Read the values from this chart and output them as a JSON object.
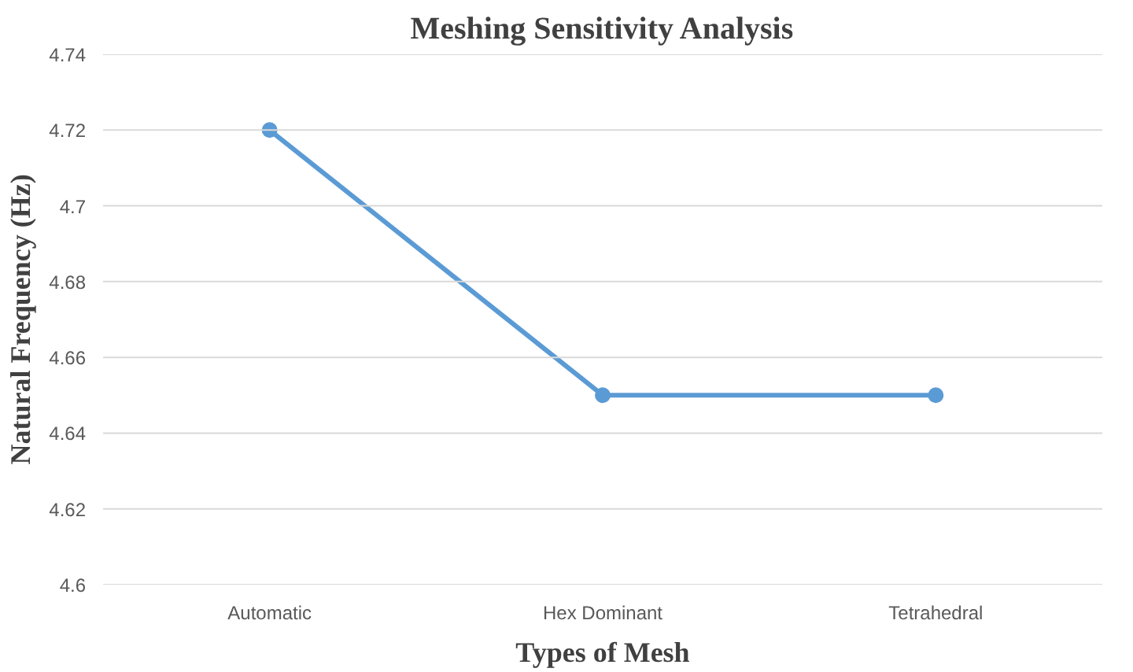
{
  "chart_data": {
    "type": "line",
    "title": "Meshing Sensitivity Analysis",
    "xlabel": "Types of Mesh",
    "ylabel": "Natural Frequency (Hz)",
    "categories": [
      "Automatic",
      "Hex Dominant",
      "Tetrahedral"
    ],
    "series": [
      {
        "color": "#5b9bd5",
        "values": [
          4.72,
          4.65,
          4.65
        ]
      }
    ],
    "ylim": [
      4.6,
      4.74
    ],
    "yticks": [
      4.6,
      4.62,
      4.64,
      4.66,
      4.68,
      4.7,
      4.72,
      4.74
    ],
    "grid": "y",
    "marker": "circle",
    "line_style": "solid"
  }
}
